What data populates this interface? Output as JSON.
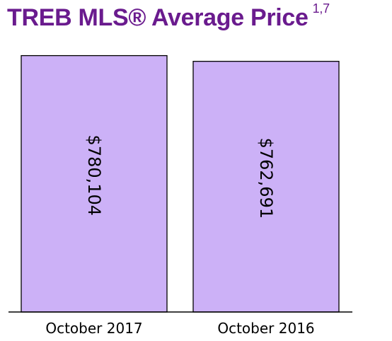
{
  "chart_data": {
    "type": "bar",
    "title": "TREB MLS® Average Price",
    "title_superscript": "1,7",
    "categories": [
      "October 2017",
      "October 2016"
    ],
    "values": [
      780104,
      762691
    ],
    "data_labels": [
      "$780,104",
      "$762,691"
    ],
    "xlabel": "",
    "ylabel": "",
    "ylim": [
      0,
      790000
    ],
    "grid": false,
    "colors": {
      "bar_fill": "#ccb1f7",
      "bar_stroke": "#000000",
      "title": "#6a1b8e"
    }
  }
}
